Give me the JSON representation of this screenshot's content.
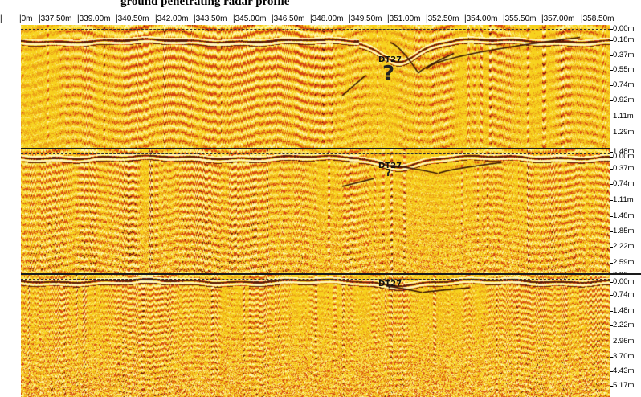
{
  "window": {
    "title": "ground penetrating radar profile"
  },
  "distance_axis": {
    "ticks": [
      "0m",
      "337.50m",
      "339.00m",
      "340.50m",
      "342.00m",
      "343.50m",
      "345.00m",
      "346.50m",
      "348.00m",
      "349.50m",
      "351.00m",
      "352.50m",
      "354.00m",
      "355.50m",
      "357.00m",
      "358.50m"
    ]
  },
  "panels": [
    {
      "name": "radargram-1",
      "depth_labels": [
        "0.00m",
        "0.18m",
        "0.37m",
        "0.55m",
        "0.74m",
        "0.92m",
        "1.11m",
        "1.29m"
      ],
      "marker": {
        "label": "DT27",
        "symbol": "?"
      }
    },
    {
      "name": "radargram-2",
      "depth_labels": [
        "1.48m",
        "0.00m",
        "0.37m",
        "0.74m",
        "1.11m",
        "1.48m",
        "1.85m",
        "2.22m",
        "2.59m",
        "2.96m"
      ],
      "marker": {
        "label": "DT27",
        "symbol": "?"
      }
    },
    {
      "name": "radargram-3",
      "depth_labels": [
        "0.00m",
        "0.74m",
        "1.48m",
        "2.22m",
        "2.96m",
        "3.70m",
        "4.43m",
        "5.17m"
      ],
      "marker": {
        "label": "DT27",
        "symbol": "?"
      }
    }
  ],
  "colors": {
    "background": "#f7d21e",
    "highlight": "#fff6b0",
    "dark_band": "#5a1a08",
    "red_band": "#d63a12"
  }
}
